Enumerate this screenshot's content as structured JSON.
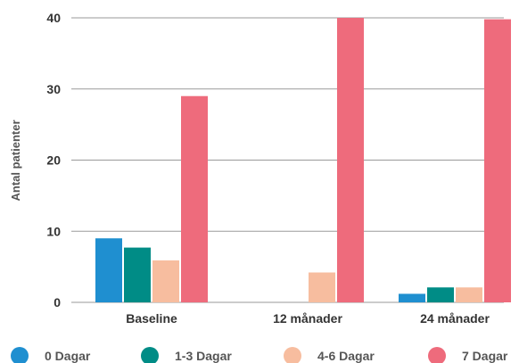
{
  "chart_data": {
    "type": "bar",
    "title": "",
    "xlabel": "",
    "ylabel": "Antal patienter",
    "ylim": [
      0,
      40
    ],
    "yticks": [
      0,
      10,
      20,
      30,
      40
    ],
    "grid": true,
    "legend_position": "bottom",
    "categories": [
      "Baseline",
      "12 månader",
      "24 månader"
    ],
    "series": [
      {
        "name": "0 Dagar",
        "color": "#1f8fd0",
        "values": [
          9,
          0,
          1.2
        ]
      },
      {
        "name": "1-3 Dagar",
        "color": "#008c86",
        "values": [
          7.7,
          0,
          2.1
        ]
      },
      {
        "name": "4-6 Dagar",
        "color": "#f7bd9f",
        "values": [
          5.9,
          4.2,
          2.1
        ]
      },
      {
        "name": "7 Dagar",
        "color": "#ee6b7c",
        "values": [
          29,
          40,
          39.8
        ]
      }
    ]
  }
}
